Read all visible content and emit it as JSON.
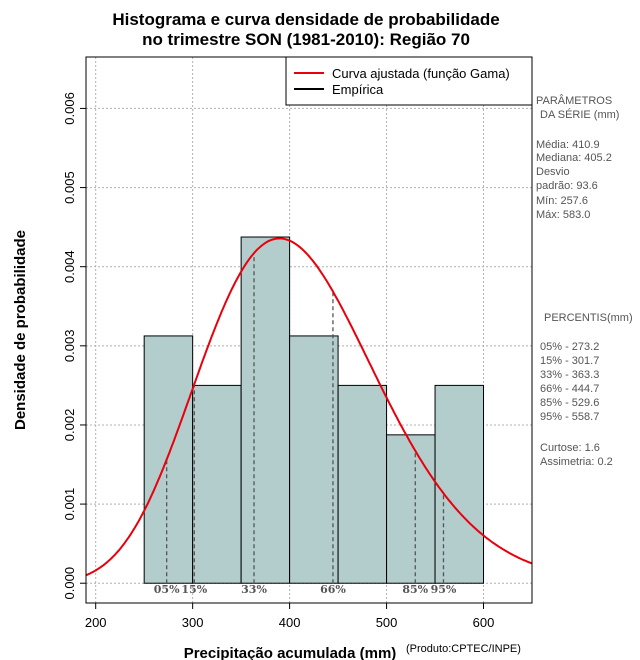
{
  "chart_data": {
    "type": "bar",
    "title": [
      "Histograma e curva densidade de probabilidade",
      "no trimestre SON (1981-2010): Região 70"
    ],
    "xlabel": "Precipitação acumulada (mm)",
    "ylabel": "Densidade de probabilidade",
    "credit": "(Produto:CPTEC/INPE)",
    "xlim": [
      190,
      650
    ],
    "ylim": [
      -0.00025,
      0.00665
    ],
    "x_ticks": [
      200,
      300,
      400,
      500,
      600
    ],
    "y_ticks": [
      0.0,
      0.001,
      0.002,
      0.003,
      0.004,
      0.005,
      0.006
    ],
    "y_tick_labels": [
      "0.000",
      "0.001",
      "0.002",
      "0.003",
      "0.004",
      "0.005",
      "0.006"
    ],
    "grid": true,
    "bins": [
      {
        "start": 250,
        "end": 300,
        "density": 0.003125
      },
      {
        "start": 300,
        "end": 350,
        "density": 0.0025
      },
      {
        "start": 350,
        "end": 400,
        "density": 0.004375
      },
      {
        "start": 400,
        "end": 450,
        "density": 0.003125
      },
      {
        "start": 450,
        "end": 500,
        "density": 0.0025
      },
      {
        "start": 500,
        "end": 550,
        "density": 0.001875
      },
      {
        "start": 550,
        "end": 600,
        "density": 0.0025
      }
    ],
    "bar_color": "#b3cccc",
    "series": [
      {
        "name": "Curva ajustada (função Gama)",
        "color": "#e8000b",
        "distribution": "gamma",
        "mean": 410.9,
        "sd": 93.6
      },
      {
        "name": "Empírica",
        "color": "#000000"
      }
    ],
    "legend_position": "top-right",
    "percentile_markers": [
      {
        "label": "05%",
        "value": 273.2
      },
      {
        "label": "15%",
        "value": 301.7
      },
      {
        "label": "33%",
        "value": 363.3
      },
      {
        "label": "66%",
        "value": 444.7
      },
      {
        "label": "85%",
        "value": 529.6
      },
      {
        "label": "95%",
        "value": 558.7
      }
    ]
  },
  "parameters": {
    "heading_1": "PARÂMETROS",
    "heading_2": "DA SÉRIE (mm)",
    "media": "Média:  410.9",
    "mediana": "Mediana:  405.2",
    "desvio_1": "Desvio",
    "desvio_2": "padrão:  93.6",
    "min": "Mín:  257.6",
    "max": "Máx:  583.0"
  },
  "percentis": {
    "heading": "PERCENTIS(mm)",
    "items": [
      "05% -   273.2",
      "15% -   301.7",
      "33% -   363.3",
      "66% -   444.7",
      "85% -   529.6",
      "95% -   558.7"
    ],
    "curtose": "Curtose:  1.6",
    "assimetria": "Assimetria:  0.2"
  }
}
